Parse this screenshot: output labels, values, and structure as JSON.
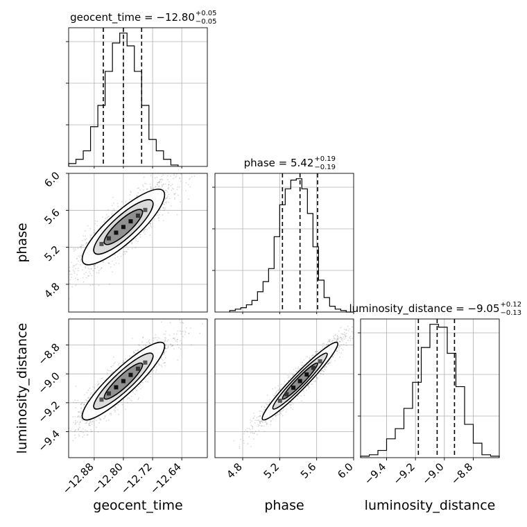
{
  "chart_data": {
    "type": "corner",
    "parameters": [
      "geocent_time",
      "phase",
      "luminosity_distance"
    ],
    "ranges": {
      "geocent_time": [
        -12.95,
        -12.57
      ],
      "phase": [
        4.5,
        6.0
      ],
      "luminosity_distance": [
        -9.58,
        -8.62
      ]
    },
    "ticks": {
      "geocent_time": [
        -12.88,
        -12.8,
        -12.72,
        -12.64
      ],
      "phase": [
        4.8,
        5.2,
        5.6,
        6.0
      ],
      "luminosity_distance": [
        -9.4,
        -9.2,
        -9.0,
        -8.8
      ]
    },
    "tick_labels": {
      "geocent_time": [
        "−12.88",
        "−12.80",
        "−12.72",
        "−12.64"
      ],
      "phase": [
        "4.8",
        "5.2",
        "5.6",
        "6.0"
      ],
      "luminosity_distance": [
        "−9.4",
        "−9.2",
        "−9.0",
        "−8.8"
      ]
    },
    "titles": [
      {
        "param": "geocent_time",
        "text": "geocent_time = −12.80",
        "sup": "+0.05",
        "sub": "−0.05"
      },
      {
        "param": "phase",
        "text": "phase = 5.42",
        "sup": "+0.19",
        "sub": "−0.19"
      },
      {
        "param": "luminosity_distance",
        "text": "luminosity_distance = −9.05",
        "sup": "+0.12",
        "sub": "−0.13"
      }
    ],
    "quantiles": {
      "geocent_time": [
        -12.855,
        -12.8,
        -12.75
      ],
      "phase": [
        5.23,
        5.42,
        5.61
      ],
      "luminosity_distance": [
        -9.18,
        -9.05,
        -8.93
      ]
    },
    "histograms": {
      "geocent_time": {
        "edges": [
          -12.95,
          -12.93,
          -12.91,
          -12.89,
          -12.87,
          -12.85,
          -12.83,
          -12.81,
          -12.79,
          -12.77,
          -12.75,
          -12.73,
          -12.71,
          -12.69,
          -12.67,
          -12.65
        ],
        "counts": [
          2,
          5,
          11,
          28,
          43,
          67,
          87,
          94,
          85,
          67,
          43,
          19,
          11,
          5,
          1
        ]
      },
      "phase": {
        "edges": [
          4.66,
          4.72,
          4.78,
          4.84,
          4.9,
          4.96,
          5.02,
          5.08,
          5.14,
          5.2,
          5.26,
          5.32,
          5.38,
          5.44,
          5.5,
          5.56,
          5.62,
          5.68,
          5.74,
          5.8,
          5.86,
          5.92,
          6.0
        ],
        "counts": [
          1,
          2,
          3,
          5,
          8,
          14,
          21,
          30,
          52,
          74,
          85,
          91,
          92,
          85,
          68,
          45,
          22,
          10,
          4,
          2,
          1,
          0
        ]
      },
      "luminosity_distance": {
        "edges": [
          -9.58,
          -9.52,
          -9.46,
          -9.4,
          -9.34,
          -9.28,
          -9.22,
          -9.16,
          -9.1,
          -9.04,
          -8.98,
          -8.92,
          -8.86,
          -8.8,
          -8.74,
          -8.68,
          -8.62
        ],
        "counts": [
          1,
          2,
          5,
          13,
          20,
          34,
          52,
          76,
          92,
          90,
          72,
          49,
          23,
          10,
          2,
          1
        ]
      }
    },
    "correlations": {
      "geocent_time__phase": 0.85,
      "geocent_time__luminosity_distance": 0.9,
      "phase__luminosity_distance": 0.96
    },
    "grid": true,
    "point_color": "#555555",
    "density_color": "#000000"
  }
}
